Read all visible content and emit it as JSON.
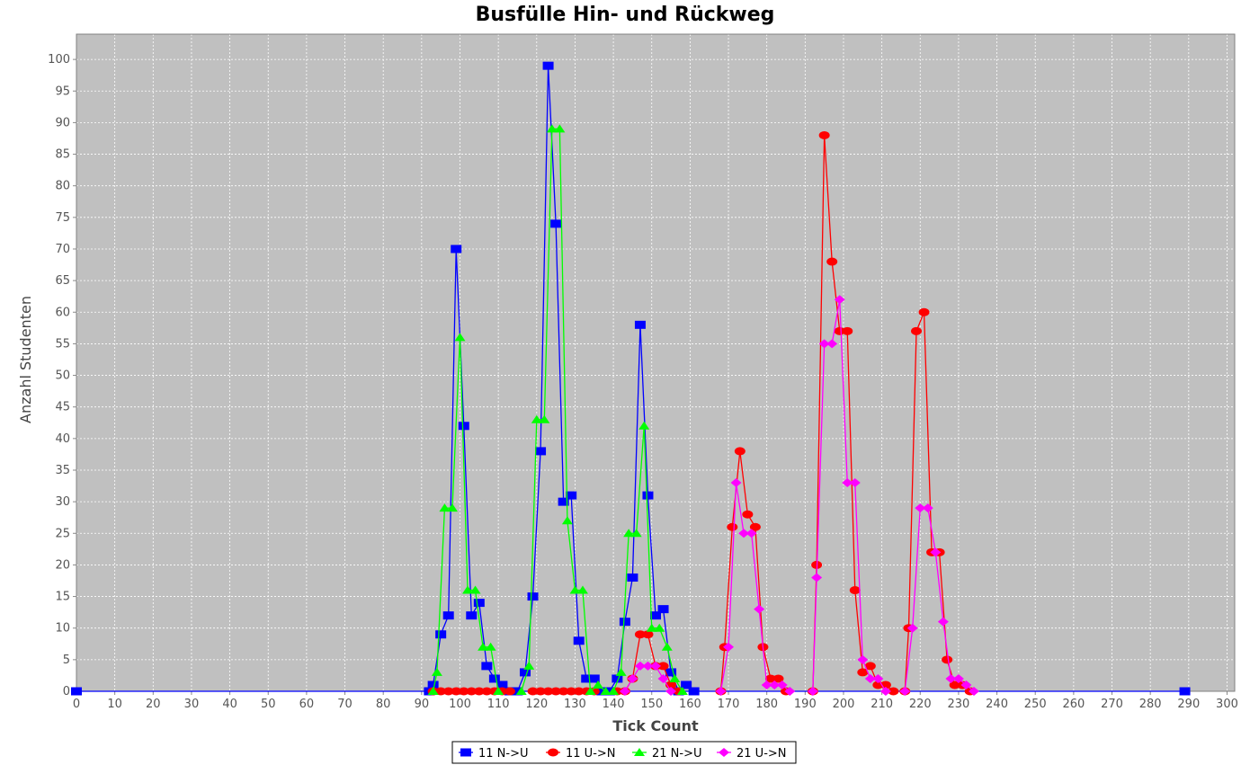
{
  "chart_data": {
    "type": "line",
    "title": "Busfülle Hin- und Rückweg",
    "xlabel": "Tick Count",
    "ylabel": "Anzahl Studenten",
    "xlim": [
      0,
      302
    ],
    "ylim": [
      0,
      104
    ],
    "x_ticks": [
      0,
      10,
      20,
      30,
      40,
      50,
      60,
      70,
      80,
      90,
      100,
      110,
      120,
      130,
      140,
      150,
      160,
      170,
      180,
      190,
      200,
      210,
      220,
      230,
      240,
      250,
      260,
      270,
      280,
      290,
      300
    ],
    "y_ticks": [
      0,
      5,
      10,
      15,
      20,
      25,
      30,
      35,
      40,
      45,
      50,
      55,
      60,
      65,
      70,
      75,
      80,
      85,
      90,
      95,
      100
    ],
    "grid": true,
    "legend": "bottom",
    "colors": {
      "plot_background": "#c0c0c0",
      "grid": "#ffffff"
    },
    "series": [
      {
        "name": "11 N->U",
        "color": "#0000ff",
        "marker": "square",
        "segments": [
          [
            [
              0,
              0
            ],
            [
              289,
              0
            ]
          ],
          [
            [
              92,
              0
            ],
            [
              93,
              1
            ],
            [
              95,
              9
            ],
            [
              97,
              12
            ],
            [
              99,
              70
            ],
            [
              101,
              42
            ],
            [
              103,
              12
            ],
            [
              105,
              14
            ],
            [
              107,
              4
            ],
            [
              109,
              2
            ],
            [
              111,
              1
            ],
            [
              113,
              0
            ],
            [
              115,
              0
            ],
            [
              117,
              3
            ],
            [
              119,
              15
            ],
            [
              121,
              38
            ],
            [
              123,
              99
            ],
            [
              125,
              74
            ],
            [
              127,
              30
            ],
            [
              129,
              31
            ],
            [
              131,
              8
            ],
            [
              133,
              2
            ],
            [
              135,
              2
            ],
            [
              137,
              0
            ],
            [
              139,
              0
            ],
            [
              141,
              2
            ],
            [
              143,
              11
            ],
            [
              145,
              18
            ],
            [
              147,
              58
            ],
            [
              149,
              31
            ],
            [
              151,
              12
            ],
            [
              153,
              13
            ],
            [
              155,
              3
            ],
            [
              157,
              0
            ],
            [
              159,
              1
            ],
            [
              161,
              0
            ]
          ]
        ]
      },
      {
        "name": "11 U->N",
        "color": "#ff0000",
        "marker": "circle",
        "segments": [
          [
            [
              93,
              0
            ],
            [
              95,
              0
            ],
            [
              97,
              0
            ],
            [
              99,
              0
            ],
            [
              101,
              0
            ],
            [
              103,
              0
            ],
            [
              105,
              0
            ],
            [
              107,
              0
            ],
            [
              109,
              0
            ],
            [
              111,
              0
            ],
            [
              113,
              0
            ]
          ],
          [
            [
              119,
              0
            ],
            [
              121,
              0
            ],
            [
              123,
              0
            ],
            [
              125,
              0
            ],
            [
              127,
              0
            ],
            [
              129,
              0
            ],
            [
              131,
              0
            ],
            [
              133,
              0
            ],
            [
              135,
              0
            ]
          ],
          [
            [
              141,
              0
            ],
            [
              143,
              0
            ],
            [
              145,
              2
            ],
            [
              147,
              9
            ],
            [
              149,
              9
            ],
            [
              151,
              4
            ],
            [
              153,
              4
            ],
            [
              155,
              1
            ],
            [
              157,
              0
            ]
          ],
          [
            [
              168,
              0
            ],
            [
              169,
              7
            ],
            [
              171,
              26
            ],
            [
              173,
              38
            ],
            [
              175,
              28
            ],
            [
              177,
              26
            ],
            [
              179,
              7
            ],
            [
              181,
              2
            ],
            [
              183,
              2
            ],
            [
              185,
              0
            ]
          ],
          [
            [
              192,
              0
            ],
            [
              193,
              20
            ],
            [
              195,
              88
            ],
            [
              197,
              68
            ],
            [
              199,
              57
            ],
            [
              201,
              57
            ],
            [
              203,
              16
            ],
            [
              205,
              3
            ],
            [
              207,
              4
            ],
            [
              209,
              1
            ],
            [
              211,
              1
            ],
            [
              213,
              0
            ]
          ],
          [
            [
              216,
              0
            ],
            [
              217,
              10
            ],
            [
              219,
              57
            ],
            [
              221,
              60
            ],
            [
              223,
              22
            ],
            [
              225,
              22
            ],
            [
              227,
              5
            ],
            [
              229,
              1
            ],
            [
              231,
              1
            ],
            [
              233,
              0
            ]
          ]
        ]
      },
      {
        "name": "21 N->U",
        "color": "#00ff00",
        "marker": "triangle",
        "segments": [
          [
            [
              93,
              0
            ],
            [
              94,
              3
            ],
            [
              96,
              29
            ],
            [
              98,
              29
            ],
            [
              100,
              56
            ],
            [
              102,
              16
            ],
            [
              104,
              16
            ],
            [
              106,
              7
            ],
            [
              108,
              7
            ],
            [
              110,
              0
            ]
          ],
          [
            [
              116,
              0
            ],
            [
              118,
              4
            ],
            [
              120,
              43
            ],
            [
              122,
              43
            ],
            [
              124,
              89
            ],
            [
              126,
              89
            ],
            [
              128,
              27
            ],
            [
              130,
              16
            ],
            [
              132,
              16
            ],
            [
              134,
              0
            ],
            [
              136,
              1
            ],
            [
              138,
              0
            ]
          ],
          [
            [
              140,
              0
            ],
            [
              142,
              3
            ],
            [
              144,
              25
            ],
            [
              146,
              25
            ],
            [
              148,
              42
            ],
            [
              150,
              10
            ],
            [
              152,
              10
            ],
            [
              154,
              7
            ],
            [
              156,
              2
            ],
            [
              158,
              0
            ]
          ]
        ]
      },
      {
        "name": "21 U->N",
        "color": "#ff00ff",
        "marker": "diamond",
        "segments": [
          [
            [
              143,
              0
            ],
            [
              145,
              2
            ],
            [
              147,
              4
            ],
            [
              149,
              4
            ],
            [
              151,
              4
            ],
            [
              153,
              2
            ],
            [
              155,
              0
            ]
          ],
          [
            [
              168,
              0
            ],
            [
              170,
              7
            ],
            [
              172,
              33
            ],
            [
              174,
              25
            ],
            [
              176,
              25
            ],
            [
              178,
              13
            ],
            [
              180,
              1
            ],
            [
              182,
              1
            ],
            [
              184,
              1
            ],
            [
              186,
              0
            ]
          ],
          [
            [
              192,
              0
            ],
            [
              193,
              18
            ],
            [
              195,
              55
            ],
            [
              197,
              55
            ],
            [
              199,
              62
            ],
            [
              201,
              33
            ],
            [
              203,
              33
            ],
            [
              205,
              5
            ],
            [
              207,
              2
            ],
            [
              209,
              2
            ],
            [
              211,
              0
            ]
          ],
          [
            [
              216,
              0
            ],
            [
              218,
              10
            ],
            [
              220,
              29
            ],
            [
              222,
              29
            ],
            [
              224,
              22
            ],
            [
              226,
              11
            ],
            [
              228,
              2
            ],
            [
              230,
              2
            ],
            [
              232,
              1
            ],
            [
              234,
              0
            ]
          ]
        ]
      }
    ]
  }
}
